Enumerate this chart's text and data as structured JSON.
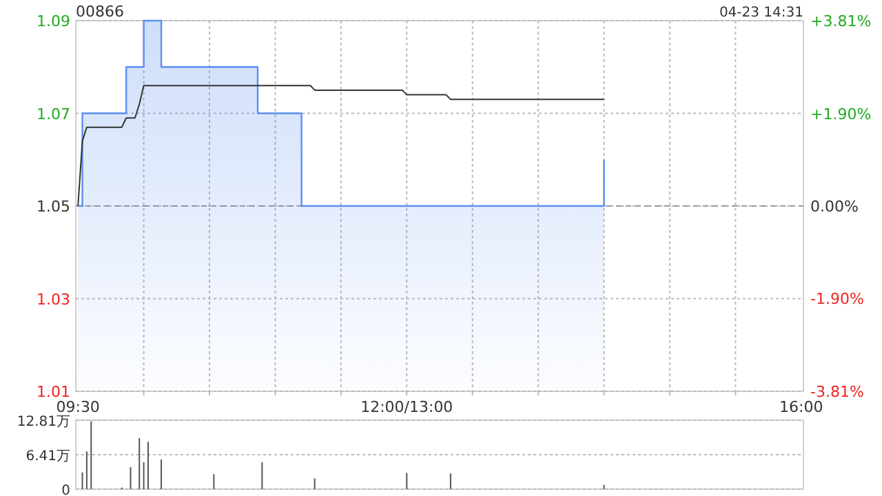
{
  "chart_data": [
    {
      "type": "step",
      "title": "00866",
      "annotations": [
        "04-23 14:31"
      ],
      "categories": [
        "09:30",
        null,
        null,
        null,
        null,
        null,
        null,
        null,
        null,
        null,
        null,
        null,
        null,
        null,
        null,
        null,
        null,
        null,
        null,
        null,
        null,
        null,
        null,
        null,
        null,
        null,
        null,
        null,
        null,
        null,
        null,
        null,
        null,
        null,
        null,
        null,
        null,
        null,
        null,
        null,
        null,
        null,
        null,
        null,
        null,
        null,
        null,
        null,
        null,
        null,
        null,
        null,
        null,
        null,
        null,
        null,
        null,
        null,
        null,
        null,
        null,
        null,
        null,
        null,
        null,
        null,
        null,
        null,
        null,
        null,
        null,
        null,
        null,
        null,
        null,
        "12:00/13:00",
        null,
        null,
        null,
        null,
        null,
        null,
        null,
        null,
        null,
        null,
        null,
        null,
        null,
        null,
        null,
        null,
        null,
        null,
        null,
        null,
        null,
        null,
        null,
        null,
        null,
        null,
        null,
        null,
        null,
        null,
        null,
        null,
        null,
        null,
        null,
        null,
        null,
        null,
        null,
        null,
        null,
        null,
        null,
        null,
        null,
        null,
        null,
        null,
        null,
        null,
        null,
        null,
        null,
        null,
        null,
        null,
        null,
        null,
        null,
        null,
        null,
        null,
        null,
        null,
        null,
        null,
        null,
        null,
        null,
        null,
        null,
        null,
        null,
        null,
        null,
        null,
        null,
        null,
        null,
        null,
        null,
        null,
        null,
        null,
        null,
        null,
        null,
        null,
        null,
        "16:00"
      ],
      "ylim": [
        1.01,
        1.09
      ],
      "yticks": [
        1.01,
        1.03,
        1.05,
        1.07,
        1.09
      ],
      "y2lim": [
        -3.81,
        3.81
      ],
      "y2ticks": [
        {
          "value": -3.81,
          "label": "-3.81%"
        },
        {
          "value": -1.9,
          "label": "-1.90%"
        },
        {
          "value": 0,
          "label": "0.00%"
        },
        {
          "value": 1.9,
          "label": "+1.90%"
        },
        {
          "value": 3.81,
          "label": "+3.81%"
        }
      ],
      "grid": true,
      "ref_lines": [
        {
          "axis": "y",
          "value": 1.05,
          "color": "#999999",
          "line_style": "dashed"
        }
      ],
      "series": [
        {
          "type": "area",
          "color": "#5b8ff0",
          "values": [
            1.05,
            1.07,
            1.07,
            1.07,
            1.07,
            1.07,
            1.07,
            1.07,
            1.07,
            1.07,
            1.07,
            1.08,
            1.08,
            1.08,
            1.08,
            1.09,
            1.09,
            1.09,
            1.09,
            1.08,
            1.08,
            1.08,
            1.08,
            1.08,
            1.08,
            1.08,
            1.08,
            1.08,
            1.08,
            1.08,
            1.08,
            1.08,
            1.08,
            1.08,
            1.08,
            1.08,
            1.08,
            1.08,
            1.08,
            1.08,
            1.08,
            1.07,
            1.07,
            1.07,
            1.07,
            1.07,
            1.07,
            1.07,
            1.07,
            1.07,
            1.07,
            1.05,
            1.05,
            1.05,
            1.05,
            1.05,
            1.05,
            1.05,
            1.05,
            1.05,
            1.05,
            1.05,
            1.05,
            1.05,
            1.05,
            1.05,
            1.05,
            1.05,
            1.05,
            1.05,
            1.05,
            1.05,
            1.05,
            1.05,
            1.05,
            1.05,
            1.05,
            1.05,
            1.05,
            1.05,
            1.05,
            1.05,
            1.05,
            1.05,
            1.05,
            1.05,
            1.05,
            1.05,
            1.05,
            1.05,
            1.05,
            1.05,
            1.05,
            1.05,
            1.05,
            1.05,
            1.05,
            1.05,
            1.05,
            1.05,
            1.05,
            1.05,
            1.05,
            1.05,
            1.05,
            1.05,
            1.05,
            1.05,
            1.05,
            1.05,
            1.05,
            1.05,
            1.05,
            1.05,
            1.05,
            1.05,
            1.05,
            1.05,
            1.05,
            1.05,
            1.06,
            null,
            null,
            null,
            null,
            null,
            null,
            null,
            null,
            null,
            null,
            null,
            null,
            null,
            null,
            null,
            null,
            null,
            null,
            null,
            null,
            null,
            null,
            null,
            null,
            null,
            null,
            null,
            null,
            null,
            null,
            null,
            null,
            null,
            null,
            null,
            null,
            null,
            null,
            null,
            null,
            null,
            null,
            null,
            null,
            null
          ]
        },
        {
          "type": "line",
          "color": "#333333",
          "values": [
            1.05,
            1.064,
            1.067,
            1.067,
            1.067,
            1.067,
            1.067,
            1.067,
            1.067,
            1.067,
            1.067,
            1.069,
            1.069,
            1.069,
            1.072,
            1.076,
            1.076,
            1.076,
            1.076,
            1.076,
            1.076,
            1.076,
            1.076,
            1.076,
            1.076,
            1.076,
            1.076,
            1.076,
            1.076,
            1.076,
            1.076,
            1.076,
            1.076,
            1.076,
            1.076,
            1.076,
            1.076,
            1.076,
            1.076,
            1.076,
            1.076,
            1.076,
            1.076,
            1.076,
            1.076,
            1.076,
            1.076,
            1.076,
            1.076,
            1.076,
            1.076,
            1.076,
            1.076,
            1.076,
            1.075,
            1.075,
            1.075,
            1.075,
            1.075,
            1.075,
            1.075,
            1.075,
            1.075,
            1.075,
            1.075,
            1.075,
            1.075,
            1.075,
            1.075,
            1.075,
            1.075,
            1.075,
            1.075,
            1.075,
            1.075,
            1.074,
            1.074,
            1.074,
            1.074,
            1.074,
            1.074,
            1.074,
            1.074,
            1.074,
            1.074,
            1.073,
            1.073,
            1.073,
            1.073,
            1.073,
            1.073,
            1.073,
            1.073,
            1.073,
            1.073,
            1.073,
            1.073,
            1.073,
            1.073,
            1.073,
            1.073,
            1.073,
            1.073,
            1.073,
            1.073,
            1.073,
            1.073,
            1.073,
            1.073,
            1.073,
            1.073,
            1.073,
            1.073,
            1.073,
            1.073,
            1.073,
            1.073,
            1.073,
            1.073,
            1.073,
            1.073,
            null,
            null,
            null,
            null,
            null,
            null,
            null,
            null,
            null,
            null,
            null,
            null,
            null,
            null,
            null,
            null,
            null,
            null,
            null,
            null,
            null,
            null,
            null,
            null,
            null,
            null,
            null,
            null,
            null,
            null,
            null,
            null,
            null,
            null,
            null,
            null,
            null,
            null,
            null,
            null,
            null,
            null,
            null,
            null,
            null
          ]
        }
      ]
    },
    {
      "type": "bar",
      "categories": [
        null,
        null,
        null,
        null,
        null,
        null,
        null,
        null,
        null,
        null,
        null,
        null,
        null,
        null,
        null,
        null,
        null,
        null,
        null,
        null,
        null,
        null,
        null,
        null,
        null,
        null,
        null,
        null,
        null,
        null,
        null,
        null,
        null,
        null,
        null,
        null,
        null,
        null,
        null,
        null,
        null,
        null,
        null,
        null,
        null,
        null,
        null,
        null,
        null,
        null,
        null,
        null,
        null,
        null,
        null,
        null,
        null,
        null,
        null,
        null,
        null,
        null,
        null,
        null,
        null,
        null,
        null,
        null,
        null,
        null,
        null,
        null,
        null,
        null,
        null,
        null,
        null,
        null,
        null,
        null,
        null,
        null,
        null,
        null,
        null,
        null,
        null,
        null,
        null,
        null,
        null,
        null,
        null,
        null,
        null,
        null,
        null,
        null,
        null,
        null,
        null,
        null,
        null,
        null,
        null,
        null,
        null,
        null,
        null,
        null,
        null,
        null,
        null,
        null,
        null,
        null,
        null,
        null,
        null,
        null,
        null,
        null,
        null,
        null,
        null,
        null,
        null,
        null,
        null,
        null,
        null,
        null,
        null,
        null,
        null,
        null,
        null,
        null,
        null,
        null,
        null,
        null,
        null,
        null,
        null,
        null,
        null,
        null,
        null,
        null,
        null,
        null,
        null,
        null,
        null,
        null,
        null,
        null,
        null,
        null,
        null,
        null,
        null,
        null,
        null,
        null
      ],
      "ylim": [
        0,
        12.81
      ],
      "yticks": [
        0,
        {
          "value": 6.41,
          "label": "6.41万"
        },
        {
          "value": 12.81,
          "label": "12.81万"
        }
      ],
      "grid": "y",
      "tick_labels": "y",
      "series": [
        {
          "color": "#555555",
          "values": [
            null,
            3.1,
            7.0,
            12.6,
            null,
            null,
            null,
            null,
            null,
            null,
            0.3,
            null,
            4.1,
            null,
            9.5,
            5.0,
            8.8,
            null,
            null,
            5.5,
            null,
            null,
            null,
            null,
            null,
            null,
            null,
            null,
            null,
            null,
            null,
            2.8,
            null,
            null,
            null,
            null,
            null,
            null,
            null,
            null,
            null,
            null,
            5.0,
            null,
            null,
            null,
            null,
            null,
            null,
            null,
            null,
            null,
            null,
            null,
            2.0,
            null,
            null,
            null,
            null,
            null,
            null,
            null,
            null,
            null,
            null,
            null,
            null,
            null,
            null,
            null,
            null,
            null,
            null,
            null,
            null,
            3.0,
            null,
            null,
            null,
            null,
            null,
            null,
            null,
            null,
            null,
            2.9,
            null,
            null,
            null,
            null,
            null,
            null,
            null,
            null,
            null,
            null,
            null,
            null,
            null,
            null,
            null,
            null,
            null,
            null,
            null,
            null,
            null,
            null,
            null,
            null,
            null,
            null,
            null,
            null,
            null,
            null,
            null,
            null,
            null,
            null,
            0.8,
            null,
            null,
            null,
            null,
            null,
            null,
            null,
            null,
            null,
            null,
            null,
            null,
            null,
            null,
            null,
            null,
            null,
            null,
            null,
            null,
            null,
            null,
            null,
            null,
            null,
            null,
            null,
            null,
            null,
            null,
            null,
            null,
            null,
            null,
            null,
            null,
            null,
            null,
            null,
            null,
            null,
            null,
            null,
            null,
            null
          ]
        }
      ]
    }
  ]
}
